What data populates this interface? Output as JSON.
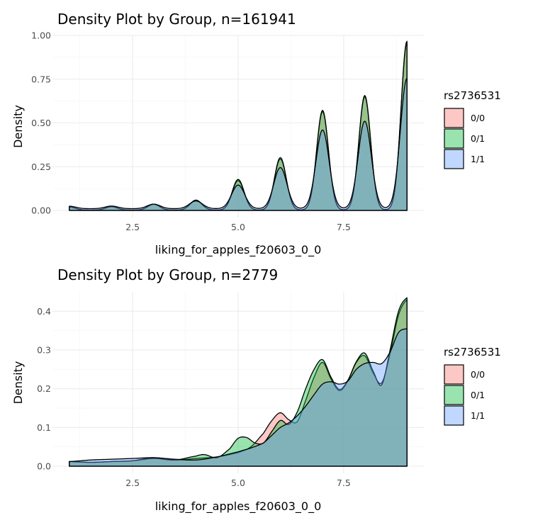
{
  "colors": {
    "g00": "#F8766D",
    "g01": "#00BA38",
    "g11": "#619CFF"
  },
  "chart_data": [
    {
      "type": "area",
      "title": "Density Plot by Group, n=161941",
      "xlabel": "liking_for_apples_f20603_0_0",
      "ylabel": "Density",
      "xlim": [
        1,
        9
      ],
      "ylim": [
        0,
        1.0
      ],
      "x_ticks": [
        "2.5",
        "5.0",
        "7.5"
      ],
      "y_ticks": [
        "0.00",
        "0.25",
        "0.50",
        "0.75",
        "1.00"
      ],
      "x_tick_values": [
        2.5,
        5.0,
        7.5
      ],
      "y_tick_values": [
        0.0,
        0.25,
        0.5,
        0.75,
        1.0
      ],
      "legend": {
        "title": "rs2736531",
        "entries": [
          "0/0",
          "0/1",
          "1/1"
        ],
        "position": "right"
      },
      "fill_opacity": 0.4,
      "series": [
        {
          "name": "0/0",
          "base": 0.002,
          "bw": 0.14,
          "peaks": [
            [
              1,
              0.018
            ],
            [
              2,
              0.019
            ],
            [
              3,
              0.033
            ],
            [
              4,
              0.055
            ],
            [
              5,
              0.168
            ],
            [
              6,
              0.292
            ],
            [
              7,
              0.562
            ],
            [
              8,
              0.647
            ],
            [
              9,
              0.955
            ]
          ]
        },
        {
          "name": "0/1",
          "base": 0.002,
          "bw": 0.14,
          "peaks": [
            [
              1,
              0.018
            ],
            [
              2,
              0.02
            ],
            [
              3,
              0.034
            ],
            [
              4,
              0.057
            ],
            [
              5,
              0.175
            ],
            [
              6,
              0.3
            ],
            [
              7,
              0.57
            ],
            [
              8,
              0.655
            ],
            [
              9,
              0.965
            ]
          ]
        },
        {
          "name": "1/1",
          "base": 0.01,
          "bw": 0.155,
          "peaks": [
            [
              1,
              0.014
            ],
            [
              2,
              0.015
            ],
            [
              3,
              0.026
            ],
            [
              4,
              0.044
            ],
            [
              5,
              0.135
            ],
            [
              6,
              0.235
            ],
            [
              7,
              0.45
            ],
            [
              8,
              0.5
            ],
            [
              9,
              0.745
            ]
          ]
        }
      ]
    },
    {
      "type": "area",
      "title": "Density Plot by Group, n=2779",
      "xlabel": "liking_for_apples_f20603_0_0",
      "ylabel": "Density",
      "xlim": [
        1,
        9
      ],
      "ylim": [
        0,
        0.45
      ],
      "x_ticks": [
        "2.5",
        "5.0",
        "7.5"
      ],
      "y_ticks": [
        "0.0",
        "0.1",
        "0.2",
        "0.3",
        "0.4"
      ],
      "x_tick_values": [
        2.5,
        5.0,
        7.5
      ],
      "y_tick_values": [
        0.0,
        0.1,
        0.2,
        0.3,
        0.4
      ],
      "legend": {
        "title": "rs2736531",
        "entries": [
          "0/0",
          "0/1",
          "1/1"
        ],
        "position": "right"
      },
      "fill_opacity": 0.4,
      "series": [
        {
          "name": "0/0",
          "x": [
            1.0,
            1.5,
            2.0,
            2.5,
            3.0,
            3.5,
            4.0,
            4.5,
            5.0,
            5.3,
            5.6,
            5.8,
            6.0,
            6.2,
            6.4,
            6.6,
            6.8,
            7.0,
            7.2,
            7.4,
            7.6,
            7.8,
            8.0,
            8.2,
            8.4,
            8.6,
            8.8,
            9.0
          ],
          "y": [
            0.012,
            0.01,
            0.012,
            0.014,
            0.022,
            0.016,
            0.02,
            0.024,
            0.035,
            0.05,
            0.085,
            0.118,
            0.138,
            0.12,
            0.115,
            0.17,
            0.23,
            0.268,
            0.225,
            0.195,
            0.22,
            0.268,
            0.285,
            0.24,
            0.215,
            0.29,
            0.39,
            0.43
          ]
        },
        {
          "name": "0/1",
          "x": [
            1.0,
            1.5,
            2.0,
            2.5,
            3.0,
            3.5,
            4.0,
            4.2,
            4.5,
            4.8,
            5.0,
            5.2,
            5.4,
            5.6,
            5.8,
            6.0,
            6.2,
            6.4,
            6.6,
            6.8,
            7.0,
            7.2,
            7.4,
            7.6,
            7.8,
            8.0,
            8.2,
            8.4,
            8.6,
            8.8,
            9.0
          ],
          "y": [
            0.012,
            0.01,
            0.012,
            0.014,
            0.02,
            0.016,
            0.026,
            0.03,
            0.022,
            0.045,
            0.072,
            0.074,
            0.06,
            0.06,
            0.09,
            0.118,
            0.108,
            0.14,
            0.2,
            0.25,
            0.275,
            0.23,
            0.198,
            0.222,
            0.27,
            0.292,
            0.245,
            0.21,
            0.3,
            0.4,
            0.435
          ]
        },
        {
          "name": "1/1",
          "x": [
            1.0,
            1.5,
            2.0,
            2.5,
            3.0,
            3.5,
            4.0,
            4.5,
            5.0,
            5.3,
            5.6,
            5.8,
            6.0,
            6.2,
            6.4,
            6.6,
            6.8,
            7.0,
            7.2,
            7.4,
            7.6,
            7.8,
            8.0,
            8.2,
            8.4,
            8.6,
            8.8,
            9.0
          ],
          "y": [
            0.012,
            0.016,
            0.018,
            0.02,
            0.022,
            0.018,
            0.016,
            0.024,
            0.037,
            0.047,
            0.06,
            0.08,
            0.1,
            0.112,
            0.13,
            0.155,
            0.185,
            0.212,
            0.218,
            0.212,
            0.22,
            0.25,
            0.265,
            0.268,
            0.265,
            0.295,
            0.345,
            0.355
          ]
        }
      ]
    }
  ]
}
